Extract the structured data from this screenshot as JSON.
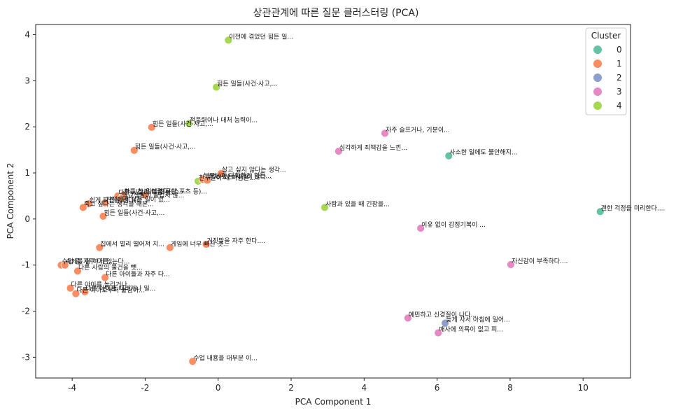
{
  "chart_data": {
    "type": "scatter",
    "title": "상관관계에 따른 질문 클러스터링 (PCA)",
    "xlabel": "PCA Component 1",
    "ylabel": "PCA Component 2",
    "xlim": [
      -5.0,
      11.3
    ],
    "ylim": [
      -3.45,
      4.22
    ],
    "xticks": [
      -4,
      -2,
      0,
      2,
      4,
      6,
      8,
      10
    ],
    "yticks": [
      -3,
      -2,
      -1,
      0,
      1,
      2,
      3,
      4
    ],
    "grid": false,
    "legend": {
      "title": "Cluster",
      "placement": "top-right",
      "entries": [
        {
          "label": "0",
          "color": "#66c2a5"
        },
        {
          "label": "1",
          "color": "#fc8d62"
        },
        {
          "label": "2",
          "color": "#8da0cb"
        },
        {
          "label": "3",
          "color": "#e78ac3"
        },
        {
          "label": "4",
          "color": "#a6d854"
        }
      ]
    },
    "points": [
      {
        "x": 0.28,
        "y": 3.88,
        "cluster": 4,
        "label": "이전에 겪었던 힘든 일..."
      },
      {
        "x": -0.05,
        "y": 2.86,
        "cluster": 4,
        "label": "힘든 일들(사건·사고,..."
      },
      {
        "x": -0.8,
        "y": 2.07,
        "cluster": 4,
        "label": "적응력이나 대처 능력이..."
      },
      {
        "x": -1.82,
        "y": 1.99,
        "cluster": 1,
        "label": "힘든 일들(사건·사고,..."
      },
      {
        "x": -2.3,
        "y": 1.49,
        "cluster": 1,
        "label": "힘든 일들(사건·사고,..."
      },
      {
        "x": 0.08,
        "y": 0.99,
        "cluster": 1,
        "label": "살고 싶지 않다는 생각..."
      },
      {
        "x": -0.55,
        "y": 0.82,
        "cluster": 4,
        "label": "친구들이 내 마음을..."
      },
      {
        "x": -0.42,
        "y": 0.86,
        "cluster": 1,
        "label": "부모님과 대화하기 힘든..."
      },
      {
        "x": -0.3,
        "y": 0.84,
        "cluster": 1,
        "label": "혼자 있는 시간이 많다..."
      },
      {
        "x": -2.75,
        "y": 0.5,
        "cluster": 1,
        "label": "다른 사람이 나를 보..."
      },
      {
        "x": -2.6,
        "y": 0.52,
        "cluster": 1,
        "label": "화를 참기 어렵다(한..."
      },
      {
        "x": -2.0,
        "y": 0.52,
        "cluster": 1,
        "label": "일부 친구(스포츠 등)..."
      },
      {
        "x": -2.65,
        "y": 0.44,
        "cluster": 1,
        "label": "학교생활이 즐겁지 않..."
      },
      {
        "x": -3.1,
        "y": 0.35,
        "cluster": 1,
        "label": "가정에서 힘든 일이 있..."
      },
      {
        "x": -3.55,
        "y": 0.33,
        "cluster": 1,
        "label": "쉽게 짜증을 낸다(하..."
      },
      {
        "x": -3.7,
        "y": 0.25,
        "cluster": 1,
        "label": "죽고 싶다는 생각을 해본..."
      },
      {
        "x": -3.15,
        "y": 0.06,
        "cluster": 1,
        "label": "힘든 일들(사건·사고,..."
      },
      {
        "x": 2.92,
        "y": 0.25,
        "cluster": 4,
        "label": "사람과 있을 때 긴장을..."
      },
      {
        "x": 4.57,
        "y": 1.86,
        "cluster": 3,
        "label": "자주 슬프거나, 기분이..."
      },
      {
        "x": 3.3,
        "y": 1.47,
        "cluster": 3,
        "label": "심각하게 죄책감을 느낀..."
      },
      {
        "x": 6.32,
        "y": 1.37,
        "cluster": 0,
        "label": "사소한 일에도 불안해지..."
      },
      {
        "x": 10.47,
        "y": 0.16,
        "cluster": 0,
        "label": "괜한 걱정을 미리한다...."
      },
      {
        "x": 5.55,
        "y": -0.2,
        "cluster": 3,
        "label": "이유 없이 감정기복이 ..."
      },
      {
        "x": 8.02,
        "y": -0.99,
        "cluster": 3,
        "label": "자신감이 부족하다...."
      },
      {
        "x": -0.33,
        "y": -0.55,
        "cluster": 1,
        "label": "거짓말을 자주 한다...."
      },
      {
        "x": -1.32,
        "y": -0.62,
        "cluster": 1,
        "label": "게임에 너무 빠진 것..."
      },
      {
        "x": -3.25,
        "y": -0.62,
        "cluster": 1,
        "label": "집에서 멀리 떨어져 지..."
      },
      {
        "x": -4.3,
        "y": -1.0,
        "cluster": 1,
        "label": "수업 중 자주 다른..."
      },
      {
        "x": -4.2,
        "y": -1.0,
        "cluster": 1,
        "label": "숙제를 잘 하지 않는다..."
      },
      {
        "x": -3.85,
        "y": -1.13,
        "cluster": 1,
        "label": "다른 사람의 물건을 뺏..."
      },
      {
        "x": -3.1,
        "y": -1.27,
        "cluster": 1,
        "label": "다른 아이들과 자주 다..."
      },
      {
        "x": -4.05,
        "y": -1.5,
        "cluster": 1,
        "label": "다른 아이를 놀리거나..."
      },
      {
        "x": -3.9,
        "y": -1.62,
        "cluster": 1,
        "label": "다른 아이로부터 놀림이..."
      },
      {
        "x": -3.65,
        "y": -1.58,
        "cluster": 1,
        "label": "다른 아이를 때리거나 밀..."
      },
      {
        "x": 5.2,
        "y": -2.15,
        "cluster": 3,
        "label": "예민하고 신경질이 나다..."
      },
      {
        "x": 6.22,
        "y": -2.26,
        "cluster": 2,
        "label": "늦게 자서 아침에 일어..."
      },
      {
        "x": 6.03,
        "y": -2.47,
        "cluster": 3,
        "label": "매사에 의욕이 없고 피..."
      },
      {
        "x": -0.7,
        "y": -3.09,
        "cluster": 1,
        "label": "수업 내용을 대부분 이..."
      }
    ]
  }
}
